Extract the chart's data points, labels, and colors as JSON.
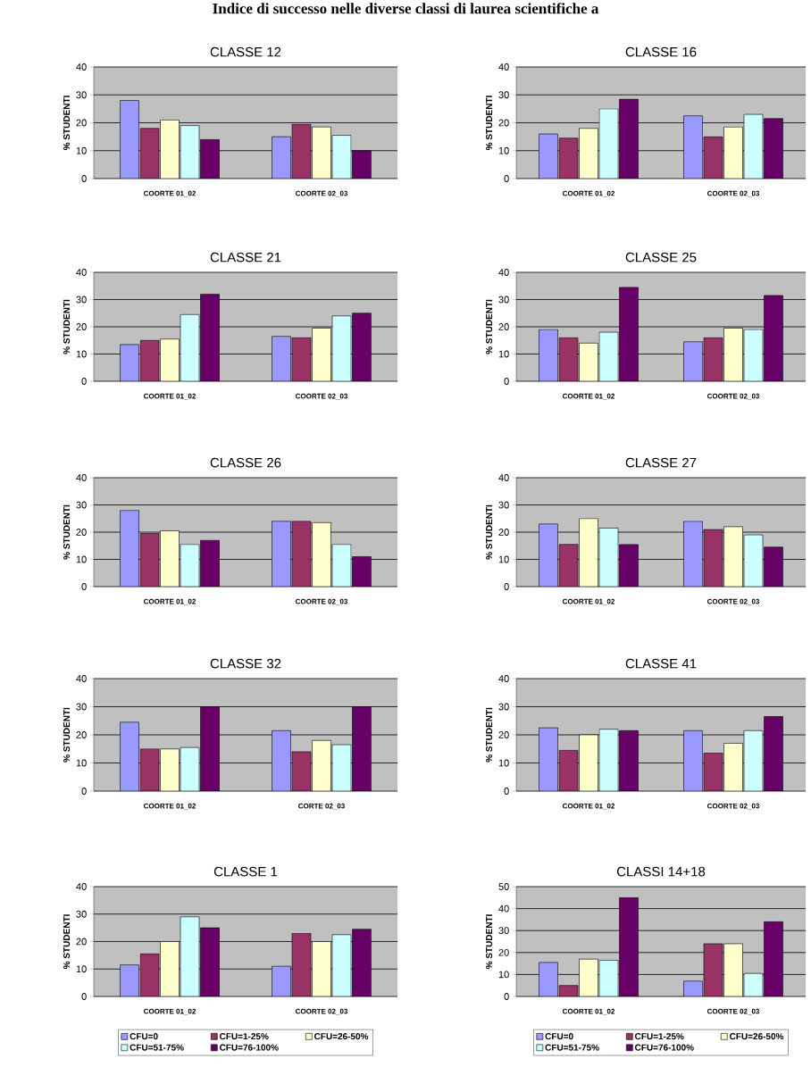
{
  "chart_data": [
    {
      "type": "other",
      "title": "Indice di successo nelle diverse classi di laurea scientifiche a"
    },
    {
      "type": "bar",
      "title": "CLASSE  12",
      "ylabel": "% STUDENTI",
      "categories": [
        "COORTE  01_02",
        "COORTE  02_03"
      ],
      "ylim": [
        0,
        40
      ],
      "yticks": [
        0,
        10,
        20,
        30,
        40
      ],
      "grid": "y",
      "series": [
        {
          "color": "#9999ff",
          "values": [
            28,
            15
          ]
        },
        {
          "color": "#993366",
          "values": [
            18,
            19.5
          ]
        },
        {
          "color": "#ffffcc",
          "values": [
            21,
            18.5
          ]
        },
        {
          "color": "#ccffff",
          "values": [
            19,
            15.5
          ]
        },
        {
          "color": "#660066",
          "values": [
            14,
            10
          ]
        }
      ]
    },
    {
      "type": "bar",
      "title": "CLASSE  16",
      "ylabel": "% STUDENTI",
      "categories": [
        "COORTE 01_02",
        "COORTE  02_03"
      ],
      "ylim": [
        0,
        40
      ],
      "yticks": [
        0,
        10,
        20,
        30,
        40
      ],
      "grid": "y",
      "series": [
        {
          "color": "#9999ff",
          "values": [
            16,
            22.5
          ]
        },
        {
          "color": "#993366",
          "values": [
            14.5,
            15
          ]
        },
        {
          "color": "#ffffcc",
          "values": [
            18,
            18.5
          ]
        },
        {
          "color": "#ccffff",
          "values": [
            25,
            23
          ]
        },
        {
          "color": "#660066",
          "values": [
            28.5,
            21.5
          ]
        }
      ]
    },
    {
      "type": "bar",
      "title": "CLASSE 21",
      "ylabel": "% STUDENTI",
      "categories": [
        "COORTE 01_02",
        "COORTE  02_03"
      ],
      "ylim": [
        0,
        40
      ],
      "yticks": [
        0,
        10,
        20,
        30,
        40
      ],
      "grid": "y",
      "series": [
        {
          "color": "#9999ff",
          "values": [
            13.5,
            16.5
          ]
        },
        {
          "color": "#993366",
          "values": [
            15,
            16
          ]
        },
        {
          "color": "#ffffcc",
          "values": [
            15.5,
            19.5
          ]
        },
        {
          "color": "#ccffff",
          "values": [
            24.5,
            24
          ]
        },
        {
          "color": "#660066",
          "values": [
            32,
            25
          ]
        }
      ]
    },
    {
      "type": "bar",
      "title": "CLASSE 25",
      "ylabel": "% STUDENTI",
      "categories": [
        "COORTE 01_02",
        "COORTE  02_03"
      ],
      "ylim": [
        0,
        40
      ],
      "yticks": [
        0,
        10,
        20,
        30,
        40
      ],
      "grid": "y",
      "series": [
        {
          "color": "#9999ff",
          "values": [
            19,
            14.5
          ]
        },
        {
          "color": "#993366",
          "values": [
            16,
            16
          ]
        },
        {
          "color": "#ffffcc",
          "values": [
            14,
            19.5
          ]
        },
        {
          "color": "#ccffff",
          "values": [
            18,
            19
          ]
        },
        {
          "color": "#660066",
          "values": [
            34.5,
            31.5
          ]
        }
      ]
    },
    {
      "type": "bar",
      "title": "CLASSE 26",
      "ylabel": "% STUDENTI",
      "categories": [
        "COORTE  01_02",
        "COORTE 02_03"
      ],
      "ylim": [
        0,
        40
      ],
      "yticks": [
        0,
        10,
        20,
        30,
        40
      ],
      "grid": "y",
      "series": [
        {
          "color": "#9999ff",
          "values": [
            28,
            24
          ]
        },
        {
          "color": "#993366",
          "values": [
            19.5,
            24
          ]
        },
        {
          "color": "#ffffcc",
          "values": [
            20.5,
            23.5
          ]
        },
        {
          "color": "#ccffff",
          "values": [
            15.5,
            15.5
          ]
        },
        {
          "color": "#660066",
          "values": [
            17,
            11
          ]
        }
      ]
    },
    {
      "type": "bar",
      "title": "CLASSE 27",
      "ylabel": "% STUDENTI",
      "categories": [
        "COORTE 01_02",
        "COORTE 02_03"
      ],
      "ylim": [
        0,
        40
      ],
      "yticks": [
        0,
        10,
        20,
        30,
        40
      ],
      "grid": "y",
      "series": [
        {
          "color": "#9999ff",
          "values": [
            23,
            24
          ]
        },
        {
          "color": "#993366",
          "values": [
            15.5,
            21
          ]
        },
        {
          "color": "#ffffcc",
          "values": [
            25,
            22
          ]
        },
        {
          "color": "#ccffff",
          "values": [
            21.5,
            19
          ]
        },
        {
          "color": "#660066",
          "values": [
            15.5,
            14.5
          ]
        }
      ]
    },
    {
      "type": "bar",
      "title": "CLASSE 32",
      "ylabel": "% STUDENTI",
      "categories": [
        "COORTE 01_02",
        "CORTE 02_03"
      ],
      "ylim": [
        0,
        40
      ],
      "yticks": [
        0,
        10,
        20,
        30,
        40
      ],
      "grid": "y",
      "series": [
        {
          "color": "#9999ff",
          "values": [
            24.5,
            21.5
          ]
        },
        {
          "color": "#993366",
          "values": [
            15,
            14
          ]
        },
        {
          "color": "#ffffcc",
          "values": [
            15,
            18
          ]
        },
        {
          "color": "#ccffff",
          "values": [
            15.5,
            16.5
          ]
        },
        {
          "color": "#660066",
          "values": [
            30,
            30
          ]
        }
      ]
    },
    {
      "type": "bar",
      "title": "CLASSE 41",
      "ylabel": "% STUDENTI",
      "categories": [
        "COORTE 01_02",
        "COORTE 02_03"
      ],
      "ylim": [
        0,
        40
      ],
      "yticks": [
        0,
        10,
        20,
        30,
        40
      ],
      "grid": "y",
      "series": [
        {
          "color": "#9999ff",
          "values": [
            22.5,
            21.5
          ]
        },
        {
          "color": "#993366",
          "values": [
            14.5,
            13.5
          ]
        },
        {
          "color": "#ffffcc",
          "values": [
            20,
            17
          ]
        },
        {
          "color": "#ccffff",
          "values": [
            22,
            21.5
          ]
        },
        {
          "color": "#660066",
          "values": [
            21.5,
            26.5
          ]
        }
      ]
    },
    {
      "type": "bar",
      "title": "CLASSE 1",
      "ylabel": "% STUDENTI",
      "categories": [
        "COORTE 01_02",
        "COORTE 02_03"
      ],
      "ylim": [
        0,
        40
      ],
      "yticks": [
        0,
        10,
        20,
        30,
        40
      ],
      "grid": "y",
      "legend": "bottom",
      "series": [
        {
          "name": "CFU=0",
          "color": "#9999ff",
          "values": [
            11.5,
            11
          ]
        },
        {
          "name": "CFU=1-25%",
          "color": "#993366",
          "values": [
            15.5,
            23
          ]
        },
        {
          "name": "CFU=26-50%",
          "color": "#ffffcc",
          "values": [
            20,
            20
          ]
        },
        {
          "name": "CFU=51-75%",
          "color": "#ccffff",
          "values": [
            29,
            22.5
          ]
        },
        {
          "name": "CFU=76-100%",
          "color": "#660066",
          "values": [
            25,
            24.5
          ]
        }
      ]
    },
    {
      "type": "bar",
      "title": "CLASSI 14+18",
      "ylabel": "% STUDENTI",
      "categories": [
        "COORTE 01_02",
        "COORTE 02_03"
      ],
      "ylim": [
        0,
        50
      ],
      "yticks": [
        0,
        10,
        20,
        30,
        40,
        50
      ],
      "grid": "y",
      "legend": "bottom",
      "series": [
        {
          "name": "CFU=0",
          "color": "#9999ff",
          "values": [
            15.5,
            7
          ]
        },
        {
          "name": "CFU=1-25%",
          "color": "#993366",
          "values": [
            5,
            24
          ]
        },
        {
          "name": "CFU=26-50%",
          "color": "#ffffcc",
          "values": [
            17,
            24
          ]
        },
        {
          "name": "CFU=51-75%",
          "color": "#ccffff",
          "values": [
            16.5,
            10.5
          ]
        },
        {
          "name": "CFU=76-100%",
          "color": "#660066",
          "values": [
            45,
            34
          ]
        }
      ]
    }
  ]
}
